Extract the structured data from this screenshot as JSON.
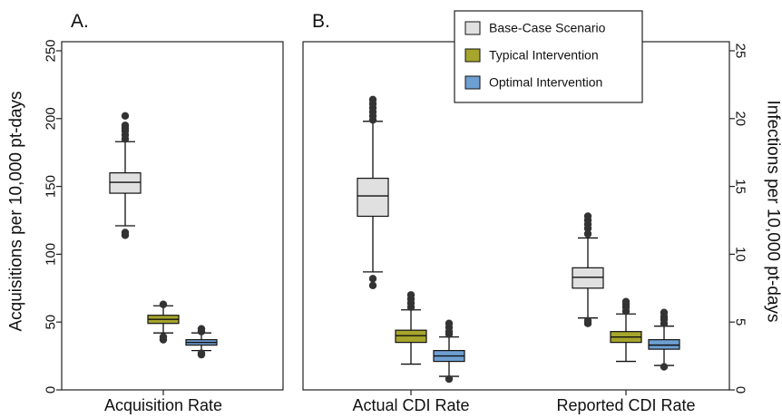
{
  "chart_data": {
    "type": "boxplot",
    "colors": {
      "base_case": "#e0e0e0",
      "typical": "#a6a52c",
      "optimal": "#6e9fd2",
      "outlier": "#333333"
    },
    "legend": {
      "placement": "top-center",
      "entries": [
        {
          "key": "base_case",
          "label": "Base-Case Scenario"
        },
        {
          "key": "typical",
          "label": "Typical Intervention"
        },
        {
          "key": "optimal",
          "label": "Optimal Intervention"
        }
      ]
    },
    "panels": [
      {
        "id": "A",
        "panel_label": "A.",
        "ylabel": "Acquisitions per 10,000 pt-days",
        "ylim": [
          0,
          250
        ],
        "yticks": [
          "0",
          "50",
          "100",
          "150",
          "200",
          "250"
        ],
        "categories": [
          {
            "label": "Acquisition Rate",
            "boxes": [
              {
                "key": "base_case",
                "min": 121,
                "q1": 145,
                "median": 153,
                "q3": 160,
                "max": 183,
                "outliers": [
                  114,
                  116,
                  185,
                  188,
                  191,
                  193,
                  195,
                  202
                ]
              },
              {
                "key": "typical",
                "min": 42,
                "q1": 49,
                "median": 52,
                "q3": 55,
                "max": 62,
                "outliers": [
                  37,
                  39,
                  63
                ]
              },
              {
                "key": "optimal",
                "min": 29,
                "q1": 33,
                "median": 35,
                "q3": 37,
                "max": 42,
                "outliers": [
                  26,
                  27,
                  43,
                  45
                ]
              }
            ]
          }
        ]
      },
      {
        "id": "B",
        "panel_label": "B.",
        "ylabel": "Infections per 10,000 pt-days",
        "ylim": [
          0,
          25
        ],
        "yticks": [
          "0",
          "5",
          "10",
          "15",
          "20",
          "25"
        ],
        "categories": [
          {
            "label": "Actual CDI Rate",
            "boxes": [
              {
                "key": "base_case",
                "min": 8.7,
                "q1": 12.8,
                "median": 14.3,
                "q3": 15.6,
                "max": 19.8,
                "outliers": [
                  7.7,
                  8.2,
                  19.9,
                  20.2,
                  20.5,
                  20.8,
                  21.1,
                  21.4
                ]
              },
              {
                "key": "typical",
                "min": 1.9,
                "q1": 3.5,
                "median": 4.0,
                "q3": 4.4,
                "max": 5.9,
                "outliers": [
                  6.1,
                  6.4,
                  6.7,
                  7.0
                ]
              },
              {
                "key": "optimal",
                "min": 1.0,
                "q1": 2.1,
                "median": 2.5,
                "q3": 2.9,
                "max": 3.9,
                "outliers": [
                  0.8,
                  4.1,
                  4.3,
                  4.6,
                  4.9
                ]
              }
            ]
          },
          {
            "label": "Reported CDI Rate",
            "boxes": [
              {
                "key": "base_case",
                "min": 5.3,
                "q1": 7.5,
                "median": 8.3,
                "q3": 9.0,
                "max": 11.2,
                "outliers": [
                  4.9,
                  5.1,
                  11.5,
                  11.9,
                  12.2,
                  12.5,
                  12.8
                ]
              },
              {
                "key": "typical",
                "min": 2.1,
                "q1": 3.5,
                "median": 3.9,
                "q3": 4.3,
                "max": 5.6,
                "outliers": [
                  5.8,
                  6.1,
                  6.3,
                  6.5
                ]
              },
              {
                "key": "optimal",
                "min": 1.8,
                "q1": 3.0,
                "median": 3.3,
                "q3": 3.7,
                "max": 4.7,
                "outliers": [
                  1.7,
                  4.9,
                  5.2,
                  5.4,
                  5.7
                ]
              }
            ]
          }
        ]
      }
    ]
  }
}
